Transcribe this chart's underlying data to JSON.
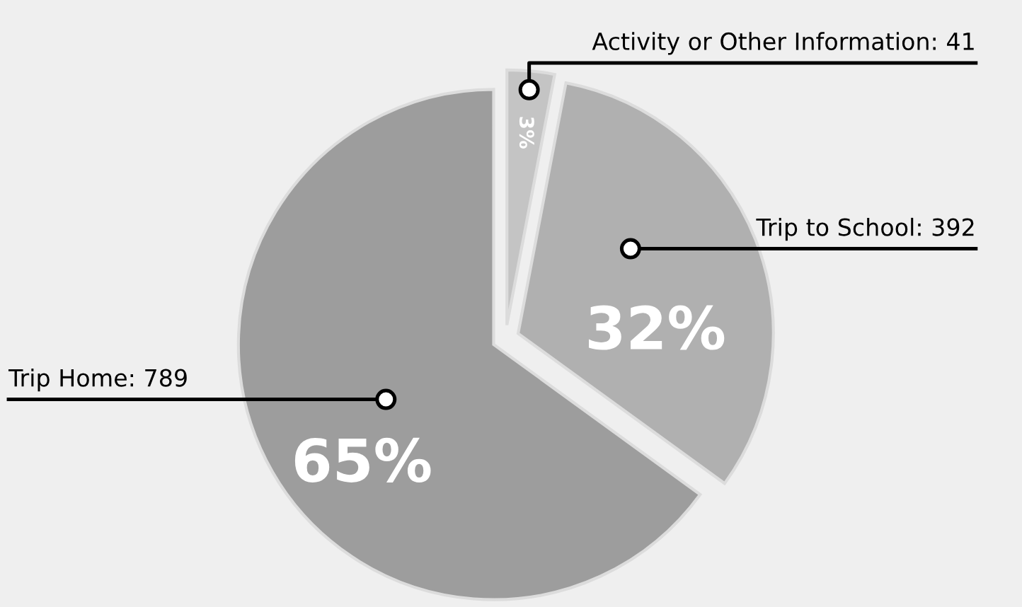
{
  "chart_data": {
    "type": "pie",
    "categories": [
      "Activity or Other Information: 41",
      "Trip to School: 392",
      "Trip Home: 789"
    ],
    "values": [
      3,
      32,
      65
    ],
    "value_labels": [
      "3%",
      "32%",
      "65%"
    ],
    "colors": [
      "#c4c4c4",
      "#b0b0b0",
      "#9d9d9d"
    ]
  }
}
